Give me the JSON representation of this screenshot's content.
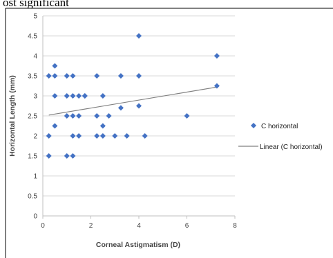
{
  "caption_fragment": "ost significant",
  "chart_data": {
    "type": "scatter",
    "title": "",
    "xlabel": "Corneal Astigmatism (D)",
    "ylabel": "Horizontal Length (mm)",
    "xlim": [
      0,
      8
    ],
    "ylim": [
      0,
      5
    ],
    "xticks": [
      0,
      2,
      4,
      6,
      8
    ],
    "yticks": [
      0,
      0.5,
      1,
      1.5,
      2,
      2.5,
      3,
      3.5,
      4,
      4.5,
      5
    ],
    "grid": "horizontal",
    "legend_position": "right",
    "marker_color": "#4472C4",
    "trendline_color": "#808080",
    "series": [
      {
        "name": "C horizontal",
        "marker": "diamond",
        "points": [
          [
            0.25,
            1.5
          ],
          [
            0.25,
            2.0
          ],
          [
            0.25,
            3.5
          ],
          [
            0.5,
            2.25
          ],
          [
            0.5,
            3.0
          ],
          [
            0.5,
            3.5
          ],
          [
            0.5,
            3.75
          ],
          [
            1.0,
            1.5
          ],
          [
            1.0,
            2.5
          ],
          [
            1.0,
            3.0
          ],
          [
            1.0,
            3.5
          ],
          [
            1.25,
            1.5
          ],
          [
            1.25,
            2.0
          ],
          [
            1.25,
            2.5
          ],
          [
            1.25,
            3.0
          ],
          [
            1.25,
            3.5
          ],
          [
            1.5,
            2.0
          ],
          [
            1.5,
            2.5
          ],
          [
            1.5,
            3.0
          ],
          [
            1.75,
            3.0
          ],
          [
            1.75,
            3.0
          ],
          [
            2.25,
            2.0
          ],
          [
            2.25,
            2.5
          ],
          [
            2.25,
            3.5
          ],
          [
            2.5,
            2.0
          ],
          [
            2.5,
            2.25
          ],
          [
            2.5,
            3.0
          ],
          [
            2.75,
            2.5
          ],
          [
            3.0,
            2.0
          ],
          [
            3.25,
            2.7
          ],
          [
            3.25,
            3.5
          ],
          [
            3.5,
            2.0
          ],
          [
            4.0,
            2.75
          ],
          [
            4.0,
            3.5
          ],
          [
            4.0,
            4.5
          ],
          [
            4.25,
            2.0
          ],
          [
            6.0,
            2.5
          ],
          [
            7.25,
            3.25
          ],
          [
            7.25,
            4.0
          ]
        ]
      },
      {
        "name": "Linear (C horizontal)",
        "type": "line",
        "points": [
          [
            0.25,
            2.52
          ],
          [
            7.25,
            3.22
          ]
        ]
      }
    ]
  }
}
